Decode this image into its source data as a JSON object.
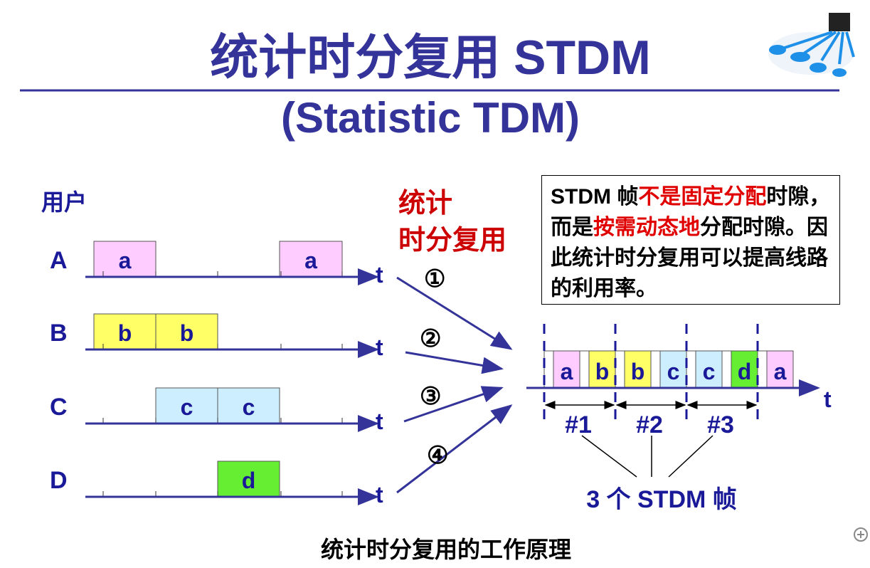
{
  "title": "统计时分复用 STDM",
  "subtitle": "(Statistic TDM)",
  "users_label": "用户",
  "mux_label": [
    "统计",
    "时分复用"
  ],
  "axis_label": "t",
  "users": [
    {
      "name": "A",
      "slots": [
        "a",
        "",
        "",
        "a"
      ],
      "color": "#ffccff"
    },
    {
      "name": "B",
      "slots": [
        "b",
        "b",
        "",
        ""
      ],
      "color": "#ffff66"
    },
    {
      "name": "C",
      "slots": [
        "",
        "c",
        "c",
        ""
      ],
      "color": "#cceeff"
    },
    {
      "name": "D",
      "slots": [
        "",
        "",
        "d",
        ""
      ],
      "color": "#66ee33"
    }
  ],
  "channels": [
    "①",
    "②",
    "③",
    "④"
  ],
  "frame_slots": [
    "a",
    "b",
    "b",
    "c",
    "c",
    "d",
    "a"
  ],
  "frames": [
    "#1",
    "#2",
    "#3"
  ],
  "frames_caption": "3 个 STDM 帧",
  "note": {
    "p1": "STDM 帧",
    "r1": "不是固定分配",
    "p2": "时隙，而是",
    "r2": "按需动态地",
    "p3": "分配时隙。因此统计时分复用可以提高线路的利用率。"
  },
  "caption": "统计时分复用的工作原理",
  "colors": {
    "title": "#333399",
    "accent": "#cc0000",
    "line": "#333399"
  }
}
